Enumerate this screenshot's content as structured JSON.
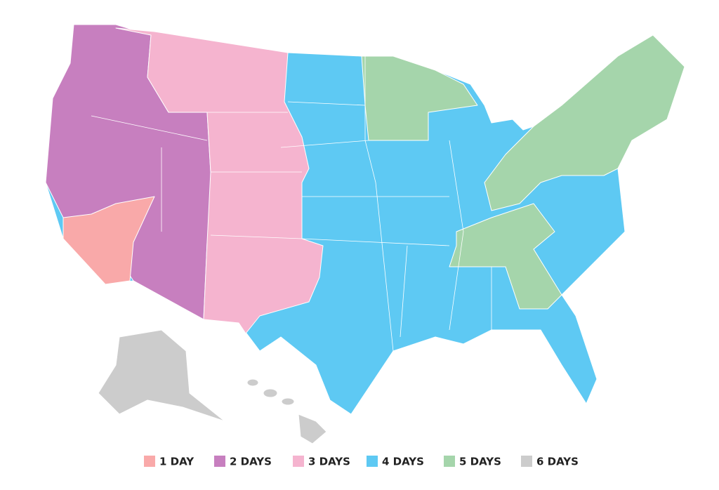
{
  "legend": {
    "items": [
      {
        "label": "1 DAY",
        "color": "#f9a9a9"
      },
      {
        "label": "2 DAYS",
        "color": "#c77fbf"
      },
      {
        "label": "3 DAYS",
        "color": "#f5b4cf"
      },
      {
        "label": "4 DAYS",
        "color": "#5ec9f3"
      },
      {
        "label": "5 DAYS",
        "color": "#a5d5ab"
      },
      {
        "label": "6 DAYS",
        "color": "#cccccc"
      }
    ]
  }
}
